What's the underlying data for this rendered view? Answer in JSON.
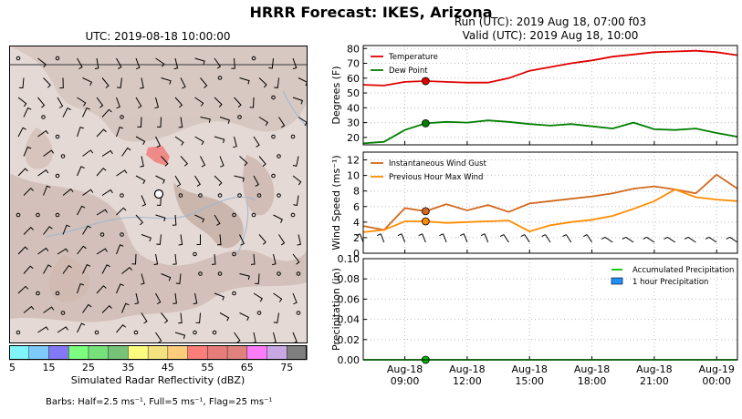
{
  "figure": {
    "title": "HRRR Forecast: IKES, Arizona",
    "run_line": "Run (UTC): 2019 Aug 18, 07:00 f03",
    "valid_line": "Valid (UTC): 2019 Aug 18, 10:00",
    "barbs_note": "Barbs: Half=2.5 ms⁻¹, Full=5 ms⁻¹, Flag=25 ms⁻¹"
  },
  "map": {
    "title": "UTC: 2019-08-18 10:00:00"
  },
  "colorbar": {
    "label": "Simulated Radar Reflectivity (dBZ)",
    "ticks": [
      "5",
      "15",
      "25",
      "35",
      "45",
      "55",
      "65",
      "75"
    ],
    "colors": [
      "#7ff5fb",
      "#7ecafc",
      "#8479f5",
      "#7efe80",
      "#76e07a",
      "#76c279",
      "#fbfb7f",
      "#f4e280",
      "#fdcd7c",
      "#fb7e7b",
      "#e77c7a",
      "#df827d",
      "#fc7dfb",
      "#c8a8e2",
      "#7f7f7f"
    ]
  },
  "chart_data": [
    {
      "type": "line",
      "ylabel": "Degrees (F)",
      "ylim": [
        15,
        82
      ],
      "yticks": [
        20,
        30,
        40,
        50,
        60,
        70,
        80
      ],
      "grid": true,
      "legend": "top-left",
      "series": [
        {
          "name": "Temperature",
          "color": "#e00000",
          "x": [
            7,
            8,
            9,
            10,
            11,
            12,
            13,
            14,
            15,
            16,
            17,
            18,
            19,
            20,
            21,
            22,
            23,
            24,
            25
          ],
          "values": [
            55.5,
            55,
            57.5,
            58,
            57.5,
            57,
            57,
            60,
            65,
            67.5,
            70,
            72,
            74.5,
            76,
            77.5,
            78,
            78.5,
            77.5,
            75.5
          ]
        },
        {
          "name": "Dew Point",
          "color": "#007f00",
          "x": [
            7,
            8,
            9,
            10,
            11,
            12,
            13,
            14,
            15,
            16,
            17,
            18,
            19,
            20,
            21,
            22,
            23,
            24,
            25
          ],
          "values": [
            16,
            17,
            25,
            29.5,
            30.5,
            30,
            31.5,
            30.5,
            29,
            28,
            29,
            27.5,
            26,
            30,
            25.5,
            25,
            26,
            23,
            20.5
          ]
        }
      ],
      "marker_x": 10
    },
    {
      "type": "line",
      "ylabel": "Wind Speed (ms⁻¹)",
      "ylim": [
        0,
        13
      ],
      "yticks": [
        0,
        2,
        4,
        6,
        8,
        10,
        12
      ],
      "grid": true,
      "legend": "top-left",
      "series": [
        {
          "name": "Instantaneous Wind Gust",
          "color": "#d2691e",
          "x": [
            7,
            8,
            9,
            10,
            11,
            12,
            13,
            14,
            15,
            16,
            17,
            18,
            19,
            20,
            21,
            22,
            23,
            24,
            25
          ],
          "values": [
            3.5,
            3,
            5.8,
            5.4,
            6.3,
            5.5,
            6.2,
            5.3,
            6.4,
            6.7,
            7,
            7.3,
            7.7,
            8.3,
            8.6,
            8.2,
            7.7,
            10.1,
            8.3
          ]
        },
        {
          "name": "Previous Hour Max Wind",
          "color": "#ff8c00",
          "x": [
            7,
            8,
            9,
            10,
            11,
            12,
            13,
            14,
            15,
            16,
            17,
            18,
            19,
            20,
            21,
            22,
            23,
            24,
            25
          ],
          "values": [
            2.7,
            3,
            4.1,
            4.1,
            3.9,
            4,
            4.1,
            4.2,
            2.8,
            3.6,
            4,
            4.3,
            4.8,
            5.7,
            6.7,
            8.2,
            7.2,
            6.9,
            6.7
          ]
        }
      ],
      "marker_x": 10
    },
    {
      "type": "line",
      "ylabel": "Precipitation (in)",
      "ylim": [
        0,
        0.1
      ],
      "yticks": [
        "0.00",
        "0.02",
        "0.04",
        "0.06",
        "0.08",
        "0.10"
      ],
      "grid": true,
      "legend": "top-right",
      "series": [
        {
          "name": "Accumulated Precipitation",
          "color": "#00c000",
          "x": [
            7,
            25
          ],
          "values": [
            0,
            0
          ]
        },
        {
          "name": "1 hour Precipitation",
          "color": "#1e90ff",
          "kind": "bar",
          "x": [],
          "values": []
        }
      ],
      "marker_x": 10
    }
  ],
  "time_axis": {
    "range_hours": [
      7,
      25
    ],
    "ticks": [
      {
        "hour": 9,
        "day": "Aug-18",
        "time": "09:00"
      },
      {
        "hour": 12,
        "day": "Aug-18",
        "time": "12:00"
      },
      {
        "hour": 15,
        "day": "Aug-18",
        "time": "15:00"
      },
      {
        "hour": 18,
        "day": "Aug-18",
        "time": "18:00"
      },
      {
        "hour": 21,
        "day": "Aug-18",
        "time": "21:00"
      },
      {
        "hour": 24,
        "day": "Aug-19",
        "time": "00:00"
      }
    ]
  }
}
